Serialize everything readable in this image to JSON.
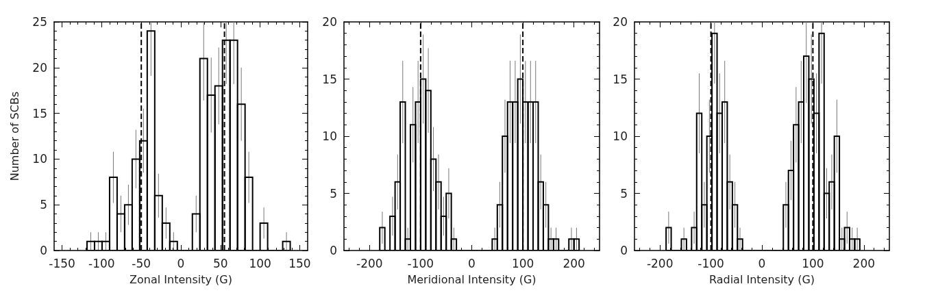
{
  "chart_data": [
    {
      "type": "histogram",
      "xlabel": "Zonal Intensity (G)",
      "ylabel": "Number of SCBs",
      "color": "#000000",
      "bins": [
        -118.5,
        -109,
        -99.5,
        -90,
        -80.5,
        -71,
        -61.5,
        -52,
        -42.5,
        -33,
        -23.5,
        -14,
        -4.5,
        5,
        14.5,
        24,
        33.5,
        43,
        52.5,
        62,
        71.5,
        81,
        90.5,
        100,
        109.5,
        119,
        128.5,
        138
      ],
      "values": [
        1,
        1,
        1,
        8,
        4,
        5,
        10,
        12,
        24,
        6,
        3,
        1,
        0,
        0,
        4,
        21,
        17,
        18,
        23,
        23,
        16,
        8,
        0,
        3,
        0,
        0,
        1
      ],
      "errors": [
        1,
        1,
        1,
        2.8,
        2,
        2.2,
        3.2,
        3.5,
        4.9,
        2.4,
        1.7,
        1,
        null,
        null,
        2,
        4.6,
        4.1,
        4.2,
        4.8,
        4.8,
        4,
        2.8,
        null,
        1.7,
        null,
        null,
        1
      ],
      "xlim": [
        -160,
        160
      ],
      "xticks": [
        -150,
        -100,
        -50,
        0,
        50,
        100,
        150
      ],
      "ylim": [
        0,
        25
      ],
      "yticks": [
        0,
        5,
        10,
        15,
        20,
        25
      ],
      "ref_lines": [
        {
          "axis": "x",
          "value": -50,
          "color": "#000000",
          "line_style": "dashed"
        },
        {
          "axis": "x",
          "value": 55,
          "color": "#000000",
          "line_style": "dashed"
        }
      ]
    },
    {
      "type": "histogram",
      "xlabel": "Meridional Intensity (G)",
      "color": "#000000",
      "bins": [
        -180,
        -170,
        -160,
        -150,
        -140,
        -130,
        -120,
        -110,
        -100,
        -90,
        -80,
        -70,
        -60,
        -50,
        -40,
        -30,
        -20,
        -10,
        0,
        10,
        20,
        30,
        40,
        50,
        60,
        70,
        80,
        90,
        100,
        110,
        120,
        130,
        140,
        150,
        160,
        170,
        180,
        190,
        200,
        210
      ],
      "values": [
        2,
        0,
        3,
        6,
        13,
        1,
        11,
        13,
        15,
        14,
        8,
        6,
        3,
        5,
        1,
        0,
        0,
        0,
        0,
        0,
        0,
        0,
        1,
        4,
        10,
        13,
        13,
        15,
        13,
        13,
        13,
        6,
        4,
        1,
        1,
        0,
        0,
        1,
        1
      ],
      "errors": [
        1.4,
        null,
        1.7,
        2.4,
        3.6,
        1,
        3.3,
        3.6,
        3.9,
        3.7,
        2.8,
        2.4,
        1.7,
        2.2,
        1,
        null,
        null,
        null,
        null,
        null,
        null,
        null,
        1,
        2,
        3.2,
        3.6,
        3.6,
        3.9,
        3.6,
        3.6,
        3.6,
        2.4,
        2,
        1,
        1,
        null,
        null,
        1,
        1
      ],
      "xlim": [
        -250,
        250
      ],
      "xticks": [
        -200,
        -100,
        0,
        100,
        200
      ],
      "ylim": [
        0,
        20
      ],
      "yticks": [
        0,
        5,
        10,
        15,
        20
      ],
      "ref_lines": [
        {
          "axis": "x",
          "value": -100,
          "color": "#000000",
          "line_style": "dashed"
        },
        {
          "axis": "x",
          "value": 100,
          "color": "#000000",
          "line_style": "dashed"
        }
      ]
    },
    {
      "type": "histogram",
      "xlabel": "Radial Intensity (G)",
      "color": "#000000",
      "bins": [
        -188,
        -178,
        -168,
        -158,
        -148,
        -138,
        -128,
        -118,
        -108,
        -98,
        -88,
        -78,
        -68,
        -58,
        -48,
        -38,
        -28,
        -18,
        -8,
        2,
        12,
        22,
        32,
        42,
        52,
        62,
        72,
        82,
        92,
        102,
        112,
        122,
        132,
        142,
        152,
        162,
        172,
        182,
        192
      ],
      "values": [
        2,
        0,
        0,
        1,
        0,
        2,
        12,
        4,
        10,
        19,
        12,
        13,
        6,
        4,
        1,
        0,
        0,
        0,
        0,
        0,
        0,
        0,
        0,
        4,
        7,
        11,
        13,
        17,
        15,
        12,
        19,
        5,
        6,
        10,
        1,
        2,
        1,
        1
      ],
      "errors": [
        1.4,
        null,
        null,
        1,
        null,
        1.4,
        3.5,
        2,
        3.2,
        4.4,
        3.5,
        3.6,
        2.4,
        2,
        1,
        null,
        null,
        null,
        null,
        null,
        null,
        null,
        null,
        2,
        2.6,
        3.3,
        3.6,
        4.1,
        3.9,
        3.5,
        4.4,
        2.2,
        2.4,
        3.2,
        1,
        1.4,
        1,
        1
      ],
      "xlim": [
        -250,
        250
      ],
      "xticks": [
        -200,
        -100,
        0,
        100,
        200
      ],
      "ylim": [
        0,
        20
      ],
      "yticks": [
        0,
        5,
        10,
        15,
        20
      ],
      "ref_lines": [
        {
          "axis": "x",
          "value": -100,
          "color": "#000000",
          "line_style": "dashed"
        },
        {
          "axis": "x",
          "value": 100,
          "color": "#000000",
          "line_style": "dashed"
        }
      ]
    }
  ]
}
